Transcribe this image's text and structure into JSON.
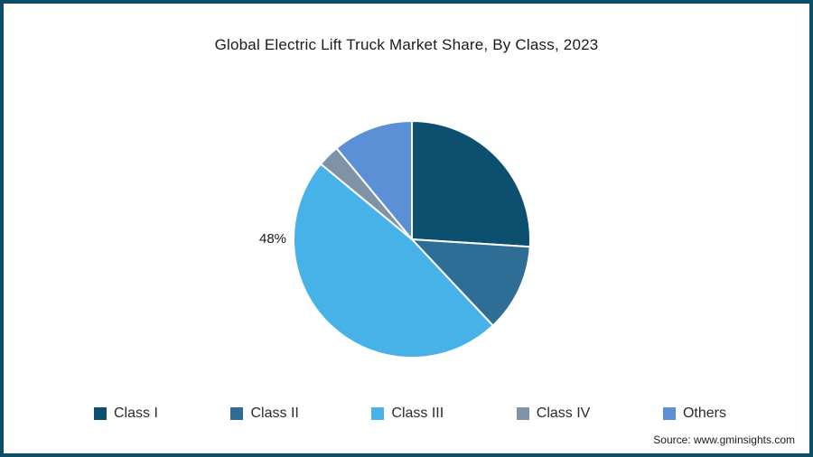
{
  "frame": {
    "border_color": "#0d4e67"
  },
  "title": "Global Electric Lift Truck Market Share, By Class, 2023",
  "source": "Source: www.gminsights.com",
  "chart_data": {
    "type": "pie",
    "title": "Global Electric Lift Truck Market Share, By Class, 2023",
    "start_angle_deg": 0,
    "direction": "clockwise",
    "legend_position": "bottom",
    "center": {
      "x": 452,
      "y": 261
    },
    "radius": 131,
    "series": [
      {
        "name": "Class I",
        "value": 26,
        "color": "#0d4f6e",
        "label": ""
      },
      {
        "name": "Class II",
        "value": 12,
        "color": "#2e6e96",
        "label": ""
      },
      {
        "name": "Class III",
        "value": 48,
        "color": "#47b2e8",
        "label": "48%"
      },
      {
        "name": "Class IV",
        "value": 3,
        "color": "#7f93a6",
        "label": ""
      },
      {
        "name": "Others",
        "value": 11,
        "color": "#5b8fd6",
        "label": ""
      }
    ]
  }
}
